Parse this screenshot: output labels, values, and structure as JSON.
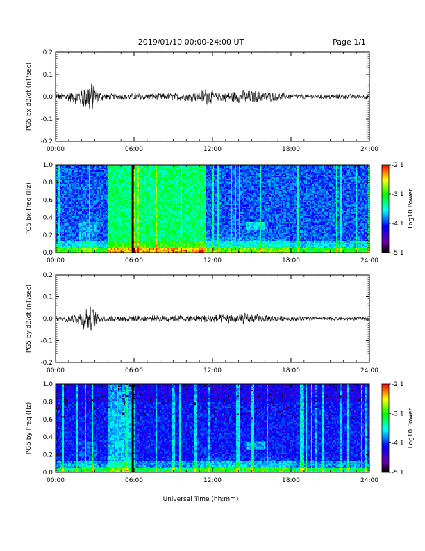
{
  "header": {
    "title": "2019/01/10  00:00-24:00 UT",
    "page": "Page 1/1"
  },
  "footer": {
    "xlabel": "Universal Time (hh:mm)"
  },
  "chart_data": [
    {
      "type": "line",
      "panel": "bx-waveform",
      "ylabel": "PG5 bx dB/dt (nT/sec)",
      "xlim": [
        "00:00",
        "24:00"
      ],
      "ylim": [
        -0.2,
        0.2
      ],
      "x_ticks": [
        "00:00",
        "06:00",
        "12:00",
        "18:00",
        "24:00"
      ],
      "y_ticks": [
        "0.2",
        "0.1",
        "0.0",
        "-0.1",
        "-0.2"
      ],
      "series": [
        {
          "color": "#000000",
          "x_hours": [
            0,
            0.5,
            1,
            1.5,
            2,
            2.3,
            2.6,
            2.9,
            3.2,
            3.5,
            4,
            5,
            6,
            7,
            8,
            9,
            10,
            11,
            11.5,
            12,
            12.5,
            13,
            13.5,
            14,
            14.5,
            15,
            15.5,
            16,
            16.5,
            17,
            18,
            19,
            20,
            21,
            22,
            23,
            24
          ],
          "amplitude": [
            0.012,
            0.018,
            0.02,
            0.03,
            0.045,
            0.06,
            0.07,
            0.055,
            0.03,
            0.02,
            0.014,
            0.012,
            0.014,
            0.014,
            0.014,
            0.016,
            0.018,
            0.02,
            0.04,
            0.025,
            0.02,
            0.022,
            0.025,
            0.026,
            0.028,
            0.026,
            0.025,
            0.024,
            0.02,
            0.016,
            0.012,
            0.011,
            0.01,
            0.01,
            0.01,
            0.01,
            0.01
          ]
        }
      ]
    },
    {
      "type": "heatmap",
      "panel": "bx-spectrogram",
      "ylabel": "PG5 bx Freq (Hz)",
      "xlim": [
        "00:00",
        "24:00"
      ],
      "ylim": [
        0.0,
        1.0
      ],
      "x_ticks": [
        "00:00",
        "06:00",
        "12:00",
        "18:00",
        "24:00"
      ],
      "y_ticks": [
        "1.0",
        "0.8",
        "0.6",
        "0.4",
        "0.2",
        "0.0"
      ],
      "colorbar": {
        "label": "Log10 Power",
        "ticks": [
          "-2.1",
          "-3.1",
          "-4.1",
          "-5.1"
        ],
        "range": [
          -5.1,
          -2.1
        ],
        "colors": [
          "#000000",
          "#6a00a8",
          "#0000ff",
          "#00ffff",
          "#00ff00",
          "#ffff00",
          "#ff0000"
        ]
      },
      "features": {
        "high_power_block_hours": [
          4.0,
          11.5
        ],
        "data_gap_hour": 5.9
      }
    },
    {
      "type": "line",
      "panel": "by-waveform",
      "ylabel": "PG5 by dB/dt (nT/sec)",
      "xlim": [
        "00:00",
        "24:00"
      ],
      "ylim": [
        -0.2,
        0.2
      ],
      "x_ticks": [
        "00:00",
        "06:00",
        "12:00",
        "18:00",
        "24:00"
      ],
      "y_ticks": [
        "0.2",
        "0.1",
        "0.0",
        "-0.1",
        "-0.2"
      ],
      "series": [
        {
          "color": "#000000",
          "x_hours": [
            0,
            0.5,
            1,
            1.5,
            2,
            2.3,
            2.6,
            2.9,
            3.2,
            3.5,
            4,
            5,
            6,
            7,
            8,
            9,
            10,
            11,
            11.5,
            12,
            12.5,
            13,
            13.5,
            14,
            14.5,
            15,
            15.5,
            16,
            16.5,
            17,
            18,
            19,
            20,
            21,
            22,
            23,
            24
          ],
          "amplitude": [
            0.01,
            0.012,
            0.015,
            0.02,
            0.04,
            0.055,
            0.06,
            0.045,
            0.02,
            0.014,
            0.012,
            0.012,
            0.013,
            0.013,
            0.013,
            0.014,
            0.014,
            0.015,
            0.02,
            0.018,
            0.017,
            0.018,
            0.02,
            0.022,
            0.024,
            0.02,
            0.018,
            0.016,
            0.014,
            0.012,
            0.01,
            0.009,
            0.008,
            0.008,
            0.008,
            0.008,
            0.008
          ]
        }
      ]
    },
    {
      "type": "heatmap",
      "panel": "by-spectrogram",
      "ylabel": "PG5 by Freq (Hz)",
      "xlim": [
        "00:00",
        "24:00"
      ],
      "ylim": [
        0.0,
        1.0
      ],
      "x_ticks": [
        "00:00",
        "06:00",
        "12:00",
        "18:00",
        "24:00"
      ],
      "y_ticks": [
        "1.0",
        "0.8",
        "0.6",
        "0.4",
        "0.2",
        "0.0"
      ],
      "colorbar": {
        "label": "Log10 Power",
        "ticks": [
          "-2.1",
          "-3.1",
          "-4.1",
          "-5.1"
        ],
        "range": [
          -5.1,
          -2.1
        ],
        "colors": [
          "#000000",
          "#6a00a8",
          "#0000ff",
          "#00ffff",
          "#00ff00",
          "#ffff00",
          "#ff0000"
        ]
      },
      "features": {
        "high_power_block_hours": [
          4.0,
          6.0
        ],
        "data_gap_hour": 5.9
      }
    }
  ]
}
